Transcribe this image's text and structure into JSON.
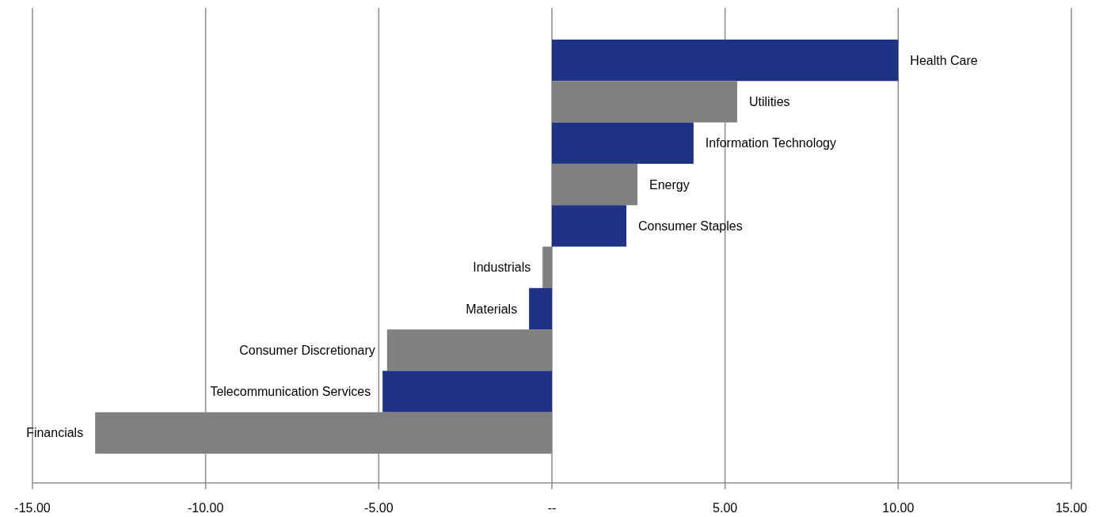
{
  "chart_data": {
    "type": "bar",
    "orientation": "horizontal",
    "categories": [
      "Health Care",
      "Utilities",
      "Information Technology",
      "Energy",
      "Consumer Staples",
      "Industrials",
      "Materials",
      "Consumer Discretionary",
      "Telecommunication Services",
      "Financials"
    ],
    "values": [
      10.0,
      5.35,
      4.09,
      2.47,
      2.15,
      -0.27,
      -0.66,
      -4.76,
      -4.89,
      -13.19
    ],
    "colors": [
      "#1f3284",
      "#808080",
      "#1f3284",
      "#808080",
      "#1f3284",
      "#808080",
      "#1f3284",
      "#808080",
      "#1f3284",
      "#808080"
    ],
    "xlim": [
      -15,
      15
    ],
    "xticks": [
      {
        "value": -15,
        "label": "-15.00"
      },
      {
        "value": -10,
        "label": "-10.00"
      },
      {
        "value": -5,
        "label": "-5.00"
      },
      {
        "value": 0,
        "label": "--"
      },
      {
        "value": 5,
        "label": "5.00"
      },
      {
        "value": 10,
        "label": "10.00"
      },
      {
        "value": 15,
        "label": "15.00"
      }
    ],
    "grid": "x"
  }
}
